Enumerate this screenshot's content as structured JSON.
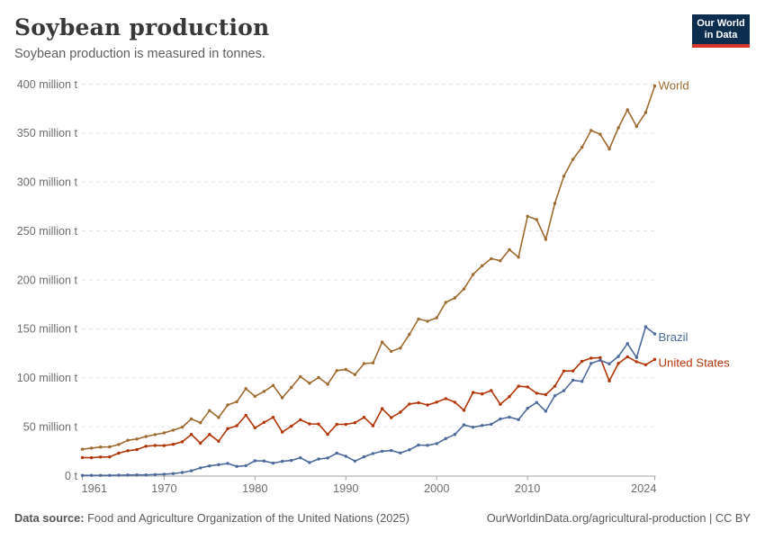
{
  "header": {
    "title": "Soybean production",
    "subtitle": "Soybean production is measured in tonnes.",
    "logo": {
      "line1": "Our World",
      "line2": "in Data",
      "bg_color": "#0d2d4f",
      "accent_color": "#d8352a"
    }
  },
  "chart_data": {
    "type": "line",
    "title": "Soybean production",
    "unit": "tonnes",
    "grid": "horizontal-dashed",
    "legend_position": "end-of-line-labels",
    "x": [
      1961,
      1962,
      1963,
      1964,
      1965,
      1966,
      1967,
      1968,
      1969,
      1970,
      1971,
      1972,
      1973,
      1974,
      1975,
      1976,
      1977,
      1978,
      1979,
      1980,
      1981,
      1982,
      1983,
      1984,
      1985,
      1986,
      1987,
      1988,
      1989,
      1990,
      1991,
      1992,
      1993,
      1994,
      1995,
      1996,
      1997,
      1998,
      1999,
      2000,
      2001,
      2002,
      2003,
      2004,
      2005,
      2006,
      2007,
      2008,
      2009,
      2010,
      2011,
      2012,
      2013,
      2014,
      2015,
      2016,
      2017,
      2018,
      2019,
      2020,
      2021,
      2022,
      2023,
      2024
    ],
    "series": [
      {
        "name": "World",
        "color": "#9E6B2F",
        "values": [
          26.9,
          28.1,
          29.2,
          29.4,
          31.8,
          36.1,
          37.4,
          40.0,
          41.9,
          43.7,
          46.5,
          49.6,
          57.9,
          54.1,
          66.5,
          59.4,
          72.2,
          75.5,
          88.9,
          81.0,
          86.1,
          92.1,
          79.5,
          90.1,
          101.2,
          94.4,
          100.2,
          93.4,
          107.3,
          108.5,
          103.3,
          114.5,
          115.2,
          136.5,
          127.0,
          130.3,
          144.4,
          160.1,
          157.8,
          161.3,
          177.0,
          181.6,
          190.7,
          205.5,
          214.5,
          221.7,
          219.6,
          230.9,
          223.2,
          265.0,
          261.6,
          241.4,
          278.2,
          306.0,
          323.2,
          335.5,
          352.7,
          348.8,
          333.7,
          355.4,
          373.8,
          356.8,
          371.0,
          398.2
        ]
      },
      {
        "name": "United States",
        "color": "#B13507",
        "values": [
          18.5,
          18.3,
          19.0,
          19.1,
          23.0,
          25.5,
          26.6,
          30.1,
          30.8,
          30.7,
          32.0,
          34.6,
          42.1,
          33.1,
          42.1,
          35.1,
          48.0,
          50.9,
          61.7,
          48.8,
          54.4,
          59.6,
          44.5,
          50.6,
          57.1,
          52.9,
          52.7,
          42.2,
          52.4,
          52.4,
          54.1,
          59.6,
          50.9,
          68.4,
          59.2,
          64.8,
          73.2,
          74.6,
          72.2,
          75.1,
          78.7,
          75.0,
          66.8,
          85.0,
          83.5,
          87.0,
          72.9,
          80.7,
          91.4,
          90.7,
          84.2,
          82.8,
          91.4,
          106.9,
          106.9,
          116.9,
          120.1,
          120.5,
          96.7,
          114.7,
          121.5,
          116.4,
          113.3,
          118.8
        ]
      },
      {
        "name": "Brazil",
        "color": "#4C6A9C",
        "values": [
          0.3,
          0.3,
          0.3,
          0.3,
          0.5,
          0.6,
          0.7,
          0.7,
          1.1,
          1.5,
          2.1,
          3.2,
          5.0,
          7.9,
          9.9,
          11.2,
          12.5,
          9.5,
          10.2,
          15.2,
          15.0,
          12.8,
          14.6,
          15.5,
          18.3,
          13.3,
          17.0,
          18.0,
          23.0,
          19.9,
          14.9,
          19.2,
          22.6,
          24.9,
          25.7,
          23.2,
          26.4,
          31.3,
          31.0,
          32.7,
          37.9,
          42.1,
          51.9,
          49.5,
          51.2,
          52.5,
          57.9,
          59.8,
          57.3,
          68.8,
          74.8,
          65.8,
          81.7,
          86.8,
          97.5,
          96.3,
          114.7,
          117.9,
          114.3,
          121.8,
          134.9,
          120.7,
          152.1,
          144.8
        ]
      }
    ],
    "y_axis": {
      "range": [
        0,
        400
      ],
      "ticks": [
        0,
        50,
        100,
        150,
        200,
        250,
        300,
        350,
        400
      ],
      "tick_labels": [
        "0 t",
        "50 million t",
        "100 million t",
        "150 million t",
        "200 million t",
        "250 million t",
        "300 million t",
        "350 million t",
        "400 million t"
      ]
    },
    "x_axis": {
      "range": [
        1961,
        2024
      ],
      "tick_years": [
        1961,
        1970,
        1980,
        1990,
        2000,
        2010,
        2024
      ]
    }
  },
  "footer": {
    "source_label": "Data source:",
    "source_text": "Food and Agriculture Organization of the United Nations (2025)",
    "right_text": "OurWorldinData.org/agricultural-production | CC BY"
  }
}
